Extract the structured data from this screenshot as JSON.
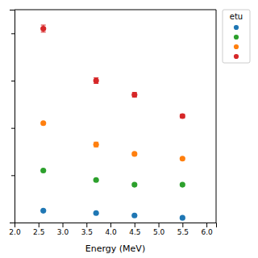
{
  "chart_data": {
    "type": "scatter",
    "xlabel": "Energy (MeV)",
    "legend_title": "etu",
    "x": [
      2.6,
      3.7,
      4.5,
      5.5
    ],
    "series": [
      {
        "color": "#1f77b4",
        "values": [
          1.05,
          1.04,
          1.03,
          1.02
        ],
        "errors": [
          0.0,
          0.0,
          0.0,
          0.0
        ]
      },
      {
        "color": "#2ca02c",
        "values": [
          1.22,
          1.18,
          1.16,
          1.16
        ],
        "errors": [
          0.0,
          0.0,
          0.0,
          0.0
        ]
      },
      {
        "color": "#ff7f0e",
        "values": [
          1.42,
          1.33,
          1.29,
          1.27
        ],
        "errors": [
          0.0,
          0.01,
          0.0,
          0.0
        ]
      },
      {
        "color": "#d62728",
        "values": [
          1.82,
          1.6,
          1.54,
          1.45
        ],
        "errors": [
          0.015,
          0.012,
          0.01,
          0.008
        ]
      }
    ],
    "marker": "circle",
    "xlim": [
      2.0,
      6.2
    ],
    "xticks": [
      {
        "value": 2.0,
        "label": "2.0"
      },
      {
        "value": 2.5,
        "label": "2.5"
      },
      {
        "value": 3.0,
        "label": "3.0"
      },
      {
        "value": 3.5,
        "label": "3.5"
      },
      {
        "value": 4.0,
        "label": "4.0"
      },
      {
        "value": 4.5,
        "label": "4.5"
      },
      {
        "value": 5.0,
        "label": "5.0"
      },
      {
        "value": 5.5,
        "label": "5.5"
      },
      {
        "value": 6.0,
        "label": "6.0"
      }
    ],
    "ylim": [
      1.0,
      1.9
    ],
    "yticks": [
      1,
      1.2,
      1.4,
      1.6,
      1.8
    ],
    "tick_labels": "x",
    "grid": false,
    "legend": "right"
  }
}
